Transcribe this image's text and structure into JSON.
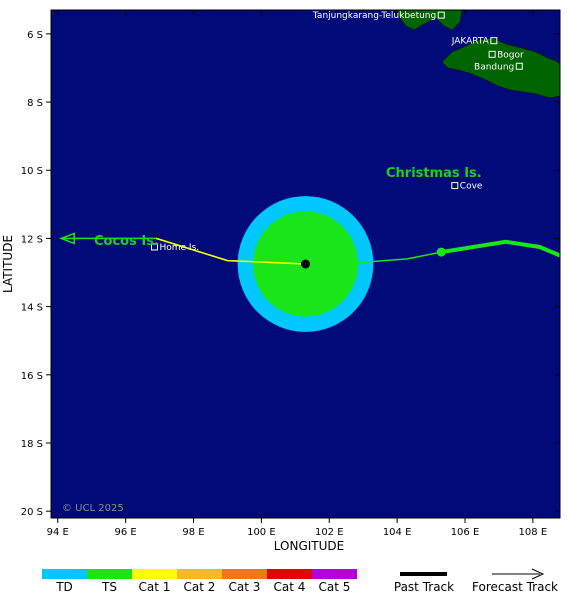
{
  "axes": {
    "xlabel": "LONGITUDE",
    "ylabel": "LATITUDE",
    "x_ticks": [
      "94 E",
      "96 E",
      "98 E",
      "100 E",
      "102 E",
      "104 E",
      "106 E",
      "108 E"
    ],
    "y_ticks": [
      "6 S",
      "8 S",
      "10 S",
      "12 S",
      "14 S",
      "16 S",
      "18 S",
      "20 S"
    ],
    "x_range_lon": [
      93.8,
      108.8
    ],
    "y_range_lat": [
      5.3,
      20.2
    ]
  },
  "places": [
    {
      "name": "Tanjungkarang-Telukbetung",
      "lon": 105.3,
      "lat": 5.45
    },
    {
      "name": "JAKARTA",
      "lon": 106.85,
      "lat": 6.2
    },
    {
      "name": "Bogor",
      "lon": 106.8,
      "lat": 6.6
    },
    {
      "name": "Bandung",
      "lon": 107.6,
      "lat": 6.95
    },
    {
      "name": "Home Is.",
      "lon": 96.85,
      "lat": 12.25
    },
    {
      "name": "Cove",
      "lon": 105.7,
      "lat": 10.45
    }
  ],
  "islands": [
    {
      "name": "Christmas Is."
    },
    {
      "name": "Cocos Is."
    }
  ],
  "storm": {
    "lon": 101.3,
    "lat": 12.75,
    "td_radius_deg": 2.0,
    "ts_radius_deg": 1.55
  },
  "tracks": {
    "past_ts_1": [
      [
        108.8,
        12.5
      ],
      [
        108.2,
        12.25
      ],
      [
        107.2,
        12.1
      ],
      [
        105.3,
        12.4
      ]
    ],
    "past_ts_2": [
      [
        105.3,
        12.4
      ],
      [
        104.3,
        12.6
      ],
      [
        103.0,
        12.7
      ],
      [
        101.3,
        12.75
      ]
    ],
    "forecast_ts": [
      [
        101.3,
        12.75
      ],
      [
        99.0,
        12.65
      ],
      [
        96.9,
        12.0
      ],
      [
        95.2,
        12.0
      ],
      [
        94.1,
        12.0
      ]
    ],
    "forecast_cat1": [
      [
        101.3,
        12.75
      ],
      [
        99.0,
        12.65
      ],
      [
        96.9,
        12.0
      ]
    ]
  },
  "copyright": "© UCL 2025",
  "legend": {
    "items": [
      {
        "label": "TD",
        "color": "#00c8ff"
      },
      {
        "label": "TS",
        "color": "#19e619"
      },
      {
        "label": "Cat 1",
        "color": "#ffff00"
      },
      {
        "label": "Cat 2",
        "color": "#f0be1e"
      },
      {
        "label": "Cat 3",
        "color": "#f07814"
      },
      {
        "label": "Cat 4",
        "color": "#e60000"
      },
      {
        "label": "Cat 5",
        "color": "#b400dc"
      }
    ],
    "past_track_label": "Past Track",
    "forecast_track_label": "Forecast Track"
  },
  "colors": {
    "ocean": "#000a78",
    "land": "#006400",
    "td": "#00c8ff",
    "ts": "#19e619",
    "cat1": "#ffff00"
  }
}
